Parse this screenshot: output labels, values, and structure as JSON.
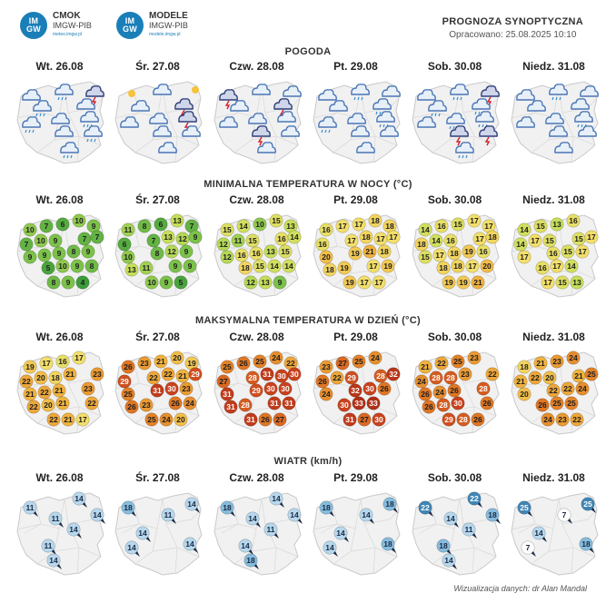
{
  "header": {
    "logo1": {
      "badge_top": "IM",
      "badge_bottom": "GW",
      "title": "CMOK",
      "subtitle": "IMGW-PIB",
      "url": "meteo.imgw.pl"
    },
    "logo2": {
      "badge_top": "IM",
      "badge_bottom": "GW",
      "title": "MODELE",
      "subtitle": "IMGW-PIB",
      "url": "modele.imgw.pl"
    },
    "forecast_title": "PROGNOZA SYNOPTYCZNA",
    "forecast_date": "Opracowano: 25.08.2025 10:10"
  },
  "days": [
    "Wt. 26.08",
    "Śr. 27.08",
    "Czw. 28.08",
    "Pt. 29.08",
    "Sob. 30.08",
    "Niedz. 31.08"
  ],
  "sections": {
    "weather": {
      "title": "POGODA",
      "maps": [
        [
          "partly-cloudy",
          "rain",
          "thunderstorm",
          "rain",
          "partly-cloudy",
          "partly-cloudy-rain",
          "partly-cloudy",
          "rain",
          "partly-cloudy",
          "rain",
          "partly-cloudy-rain"
        ],
        [
          "sunny",
          "partly-cloudy",
          "sunny",
          "partly-cloudy",
          "thunderstorm",
          "partly-cloudy",
          "cloudy",
          "thunderstorm",
          "partly-cloudy",
          "partly-cloudy",
          "partly-cloudy"
        ],
        [
          "thunderstorm",
          "partly-cloudy",
          "partly-cloudy",
          "partly-cloudy",
          "thunderstorm",
          "partly-cloudy",
          "partly-cloudy",
          "partly-cloudy",
          "thunderstorm",
          "partly-cloudy",
          "partly-cloudy"
        ],
        [
          "cloudy",
          "rain",
          "partly-cloudy",
          "cloudy",
          "rain",
          "rain",
          "partly-cloudy",
          "rain",
          "partly-cloudy",
          "partly-cloudy",
          "partly-cloudy"
        ],
        [
          "cloudy",
          "rain",
          "thunderstorm",
          "rain",
          "rain",
          "partly-cloudy",
          "rain",
          "rain",
          "thunderstorm",
          "thunderstorm",
          "rain"
        ],
        [
          "partly-cloudy",
          "rain",
          "partly-cloudy",
          "partly-cloudy",
          "partly-cloudy",
          "partly-cloudy",
          "cloudy",
          "rain",
          "partly-cloudy",
          "partly-cloudy",
          "partly-cloudy"
        ]
      ]
    },
    "min_temp": {
      "title": "MINIMALNA TEMPERATURA W NOCY (°C)",
      "maps": [
        [
          10,
          7,
          6,
          10,
          9,
          7,
          10,
          9,
          7,
          7,
          9,
          9,
          9,
          8,
          9,
          5,
          10,
          9,
          8,
          8,
          9,
          4
        ],
        [
          11,
          8,
          6,
          13,
          7,
          6,
          7,
          13,
          12,
          9,
          10,
          8,
          12,
          9,
          13,
          11,
          9,
          9,
          10,
          9,
          5
        ],
        [
          15,
          14,
          10,
          15,
          13,
          12,
          11,
          15,
          16,
          14,
          12,
          16,
          16,
          13,
          15,
          18,
          15,
          14,
          14,
          12,
          13,
          9
        ],
        [
          16,
          17,
          17,
          18,
          18,
          16,
          17,
          18,
          17,
          17,
          20,
          19,
          21,
          18,
          18,
          19,
          17,
          19,
          19,
          17,
          17
        ],
        [
          14,
          16,
          15,
          17,
          17,
          18,
          14,
          16,
          17,
          18,
          15,
          17,
          18,
          19,
          16,
          18,
          18,
          17,
          20,
          19,
          19,
          21
        ],
        [
          14,
          15,
          13,
          16,
          14,
          17,
          15,
          15,
          17,
          17,
          16,
          15,
          17,
          16,
          17,
          14,
          17,
          15,
          13
        ]
      ]
    },
    "max_temp": {
      "title": "MAKSYMALNA TEMPERATURA W DZIEŃ (°C)",
      "maps": [
        [
          19,
          17,
          16,
          17,
          22,
          20,
          18,
          21,
          23,
          21,
          22,
          21,
          23,
          22,
          20,
          21,
          22,
          22,
          21,
          17
        ],
        [
          26,
          23,
          21,
          20,
          19,
          29,
          22,
          22,
          21,
          29,
          25,
          31,
          30,
          23,
          26,
          23,
          26,
          24,
          25,
          24,
          20
        ],
        [
          25,
          26,
          25,
          24,
          22,
          27,
          28,
          31,
          30,
          30,
          31,
          29,
          30,
          30,
          31,
          28,
          31,
          31,
          31,
          26,
          27
        ],
        [
          23,
          27,
          25,
          24,
          26,
          22,
          29,
          28,
          32,
          24,
          32,
          30,
          26,
          30,
          33,
          33,
          31,
          27,
          30
        ],
        [
          21,
          22,
          25,
          23,
          24,
          28,
          28,
          23,
          22,
          26,
          24,
          26,
          28,
          26,
          28,
          30,
          26,
          29,
          28,
          26
        ],
        [
          18,
          21,
          23,
          24,
          21,
          22,
          20,
          21,
          25,
          20,
          22,
          22,
          24,
          26,
          25,
          25,
          24,
          23,
          22
        ]
      ]
    },
    "wind": {
      "title": "WIATR (km/h)",
      "maps": [
        [
          11,
          14,
          11,
          14,
          14,
          11,
          14
        ],
        [
          18,
          14,
          11,
          14,
          14,
          14
        ],
        [
          18,
          14,
          14,
          14,
          11,
          14,
          18
        ],
        [
          18,
          18,
          14,
          14,
          14,
          18
        ],
        [
          22,
          22,
          14,
          18,
          11,
          18,
          14
        ],
        [
          25,
          25,
          7,
          14,
          7,
          18
        ]
      ]
    }
  },
  "colors": {
    "map_fill": "#f1f1f1",
    "map_stroke": "#c9c9c9",
    "wind_light": "#b7d7ec",
    "wind_mid": "#86bcdd",
    "wind_strong": "#3f86b5"
  },
  "footer": "Wizualizacja danych: dr Alan Mandal"
}
